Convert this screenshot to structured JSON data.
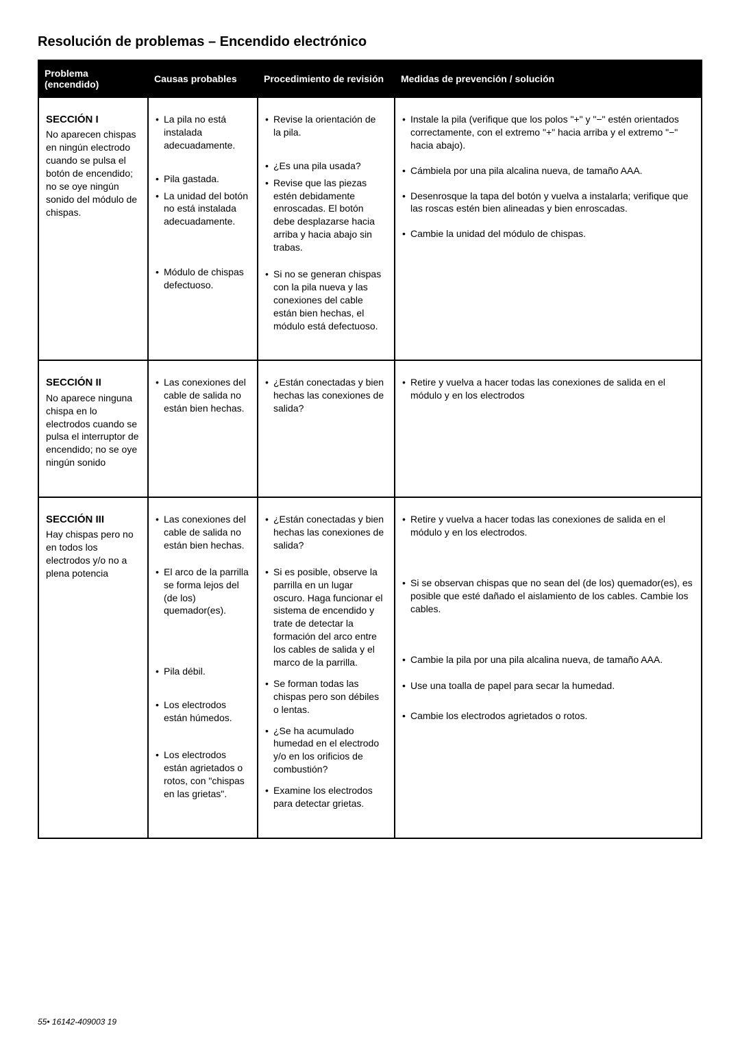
{
  "title": "Resolución de problemas – Encendido electrónico",
  "columns": [
    "Problema (encendido)",
    "Causas probables",
    "Procedimiento de revisión",
    "Medidas de prevención / solución"
  ],
  "rows": [
    {
      "problem": {
        "title": "SECCIÓN I",
        "desc": "No aparecen chispas en ningún electrodo cuando se pulsa el botón de encendido; no se oye ningún sonido del módulo de chispas."
      },
      "causes": [
        "La pila no está instalada adecuadamente.",
        "Pila gastada.",
        "La unidad del botón no está instalada adecuadamente.",
        "Módulo de chispas defectuoso."
      ],
      "checks": [
        "Revise la orientación de la pila.",
        "¿Es una pila usada?",
        "Revise que las piezas estén debidamente enroscadas. El botón debe desplazarse hacia arriba y hacia abajo sin trabas.",
        "Si no se generan chispas con la pila nueva y las conexiones del cable están bien hechas, el módulo está defectuoso."
      ],
      "solutions": [
        "Instale la pila (verifique que los polos \"+\" y \"−\" estén orientados correctamente, con el extremo \"+\" hacia arriba y el extremo \"−\" hacia abajo).",
        "Cámbiela por una pila alcalina nueva, de tamaño AAA.",
        "Desenrosque la tapa del botón y vuelva a instalarla; verifique que las roscas estén bien alineadas y bien enroscadas.",
        "Cambie la unidad del módulo de chispas."
      ]
    },
    {
      "problem": {
        "title": "SECCIÓN II",
        "desc": "No aparece ninguna chispa en lo electrodos cuando se pulsa el interruptor de encendido; no se oye ningún sonido"
      },
      "causes": [
        "Las conexiones del cable de salida no están bien hechas."
      ],
      "checks": [
        "¿Están conectadas y bien hechas las conexiones de salida?"
      ],
      "solutions": [
        "Retire y vuelva a hacer todas las conexiones de salida en el módulo y en los electrodos"
      ]
    },
    {
      "problem": {
        "title": "SECCIÓN III",
        "desc": "Hay chispas pero no en todos los electrodos y/o no a plena potencia"
      },
      "causes": [
        "Las conexiones del cable de salida no están bien hechas.",
        "El arco de la parrilla se forma lejos del (de los) quemador(es).",
        "Pila débil.",
        "Los electrodos están húmedos.",
        "Los electrodos están agrietados o rotos, con \"chispas en las grietas\"."
      ],
      "checks": [
        "¿Están conectadas y bien hechas las conexiones de salida?",
        "Si es posible, observe la parrilla en un lugar oscuro. Haga funcionar el sistema de encendido y trate de detectar la formación del arco entre los cables de salida y el marco de la parrilla.",
        "Se forman todas las chispas pero son débiles o lentas.",
        "¿Se ha acumulado humedad en el electrodo y/o en los orificios de combustión?",
        "Examine los electrodos para detectar grietas."
      ],
      "solutions": [
        "Retire y vuelva a hacer todas las conexiones de salida en el módulo y en los electrodos.",
        "Si se observan chispas que no sean del (de los) quemador(es), es posible que esté dañado el aislamiento de los cables. Cambie los cables.",
        "Cambie la pila por una pila alcalina nueva, de tamaño AAA.",
        "Use una toalla de papel para secar la humedad.",
        "Cambie los electrodos agrietados o rotos."
      ]
    }
  ],
  "footer": {
    "page": "55",
    "doc": "16142-409003 19"
  }
}
